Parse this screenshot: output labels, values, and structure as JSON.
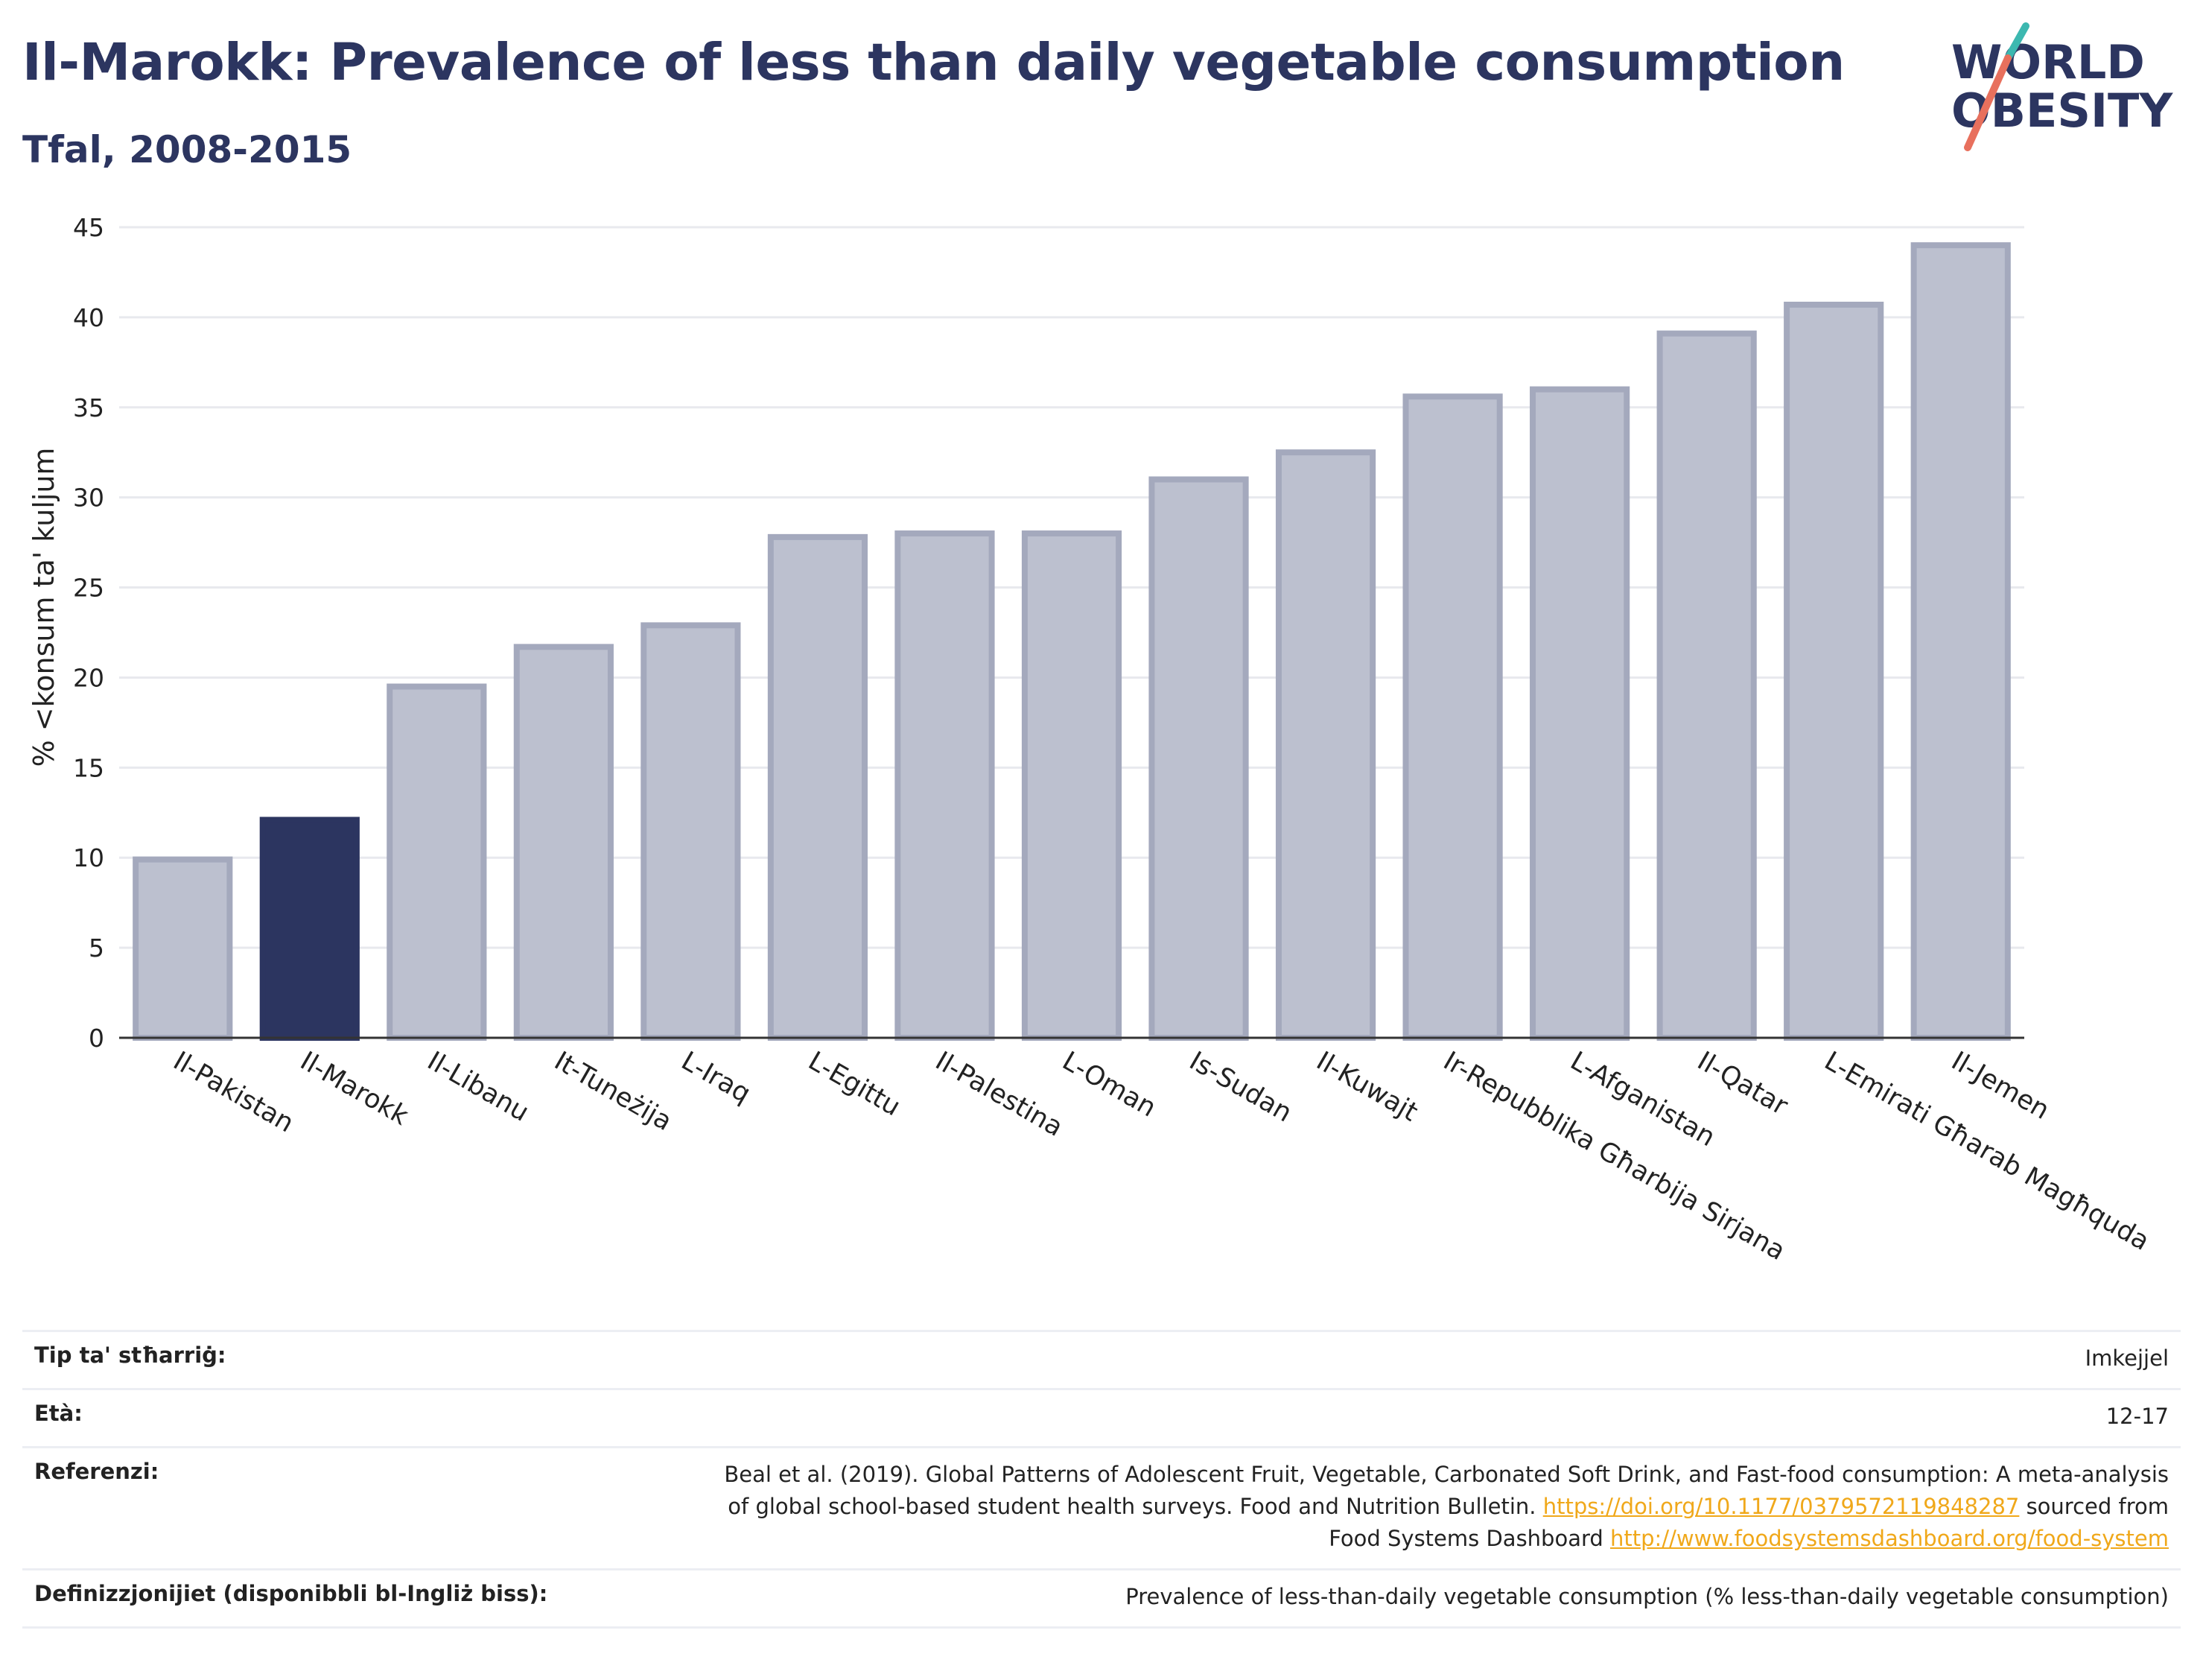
{
  "title": "Il-Marokk: Prevalence of less than daily vegetable consumption",
  "subtitle": "Tfal, 2008-2015",
  "logo": {
    "line1": "WORLD",
    "line2": "OBESITY",
    "colors": {
      "text": "#2c3560",
      "teal": "#3cb8b0",
      "coral": "#e8705d"
    }
  },
  "chart_data": {
    "type": "bar",
    "ylabel": "% <konsum ta' kuljum",
    "ylim": [
      0,
      45
    ],
    "yticks": [
      0,
      5,
      10,
      15,
      20,
      25,
      30,
      35,
      40,
      45
    ],
    "grid": true,
    "highlight": "Il-Marokk",
    "colors": {
      "highlight": "#2c3560",
      "other_fill": "#bcc0cf",
      "other_stroke": "#a4a9bd"
    },
    "categories": [
      "Il-Pakistan",
      "Il-Marokk",
      "Il-Libanu",
      "It-Tuneżija",
      "L-Iraq",
      "L-Egittu",
      "Il-Palestina",
      "L-Oman",
      "Is-Sudan",
      "Il-Kuwajt",
      "Ir-Repubblika Għarbija Sirjana",
      "L-Afganistan",
      "Il-Qatar",
      "L-Emirati Għarab Magħquda",
      "Il-Jemen"
    ],
    "values": [
      9.9,
      12.1,
      19.5,
      21.7,
      22.9,
      27.8,
      28.0,
      28.0,
      31.0,
      32.5,
      35.6,
      36.0,
      39.1,
      40.7,
      44.0
    ]
  },
  "meta": {
    "rows": [
      {
        "key": "Tip ta' stħarriġ:",
        "value": "Imkejjel"
      },
      {
        "key": "Età:",
        "value": "12-17"
      },
      {
        "key": "Referenzi:",
        "value_parts": {
          "text1": "Beal et al. (2019). Global Patterns of Adolescent Fruit, Vegetable, Carbonated Soft Drink, and Fast-food consumption: A meta-analysis of global school-based student health surveys. Food and Nutrition Bulletin.",
          "link1": "https://doi.org/10.1177/0379572119848287",
          "text2": "sourced from Food Systems Dashboard",
          "link2": "http://www.foodsystemsdashboard.org/food-system"
        }
      },
      {
        "key": "Definizzjonijiet (disponibbli bl-Ingliż biss):",
        "value": "Prevalence of less-than-daily vegetable consumption (% less-than-daily vegetable consumption)"
      }
    ]
  }
}
